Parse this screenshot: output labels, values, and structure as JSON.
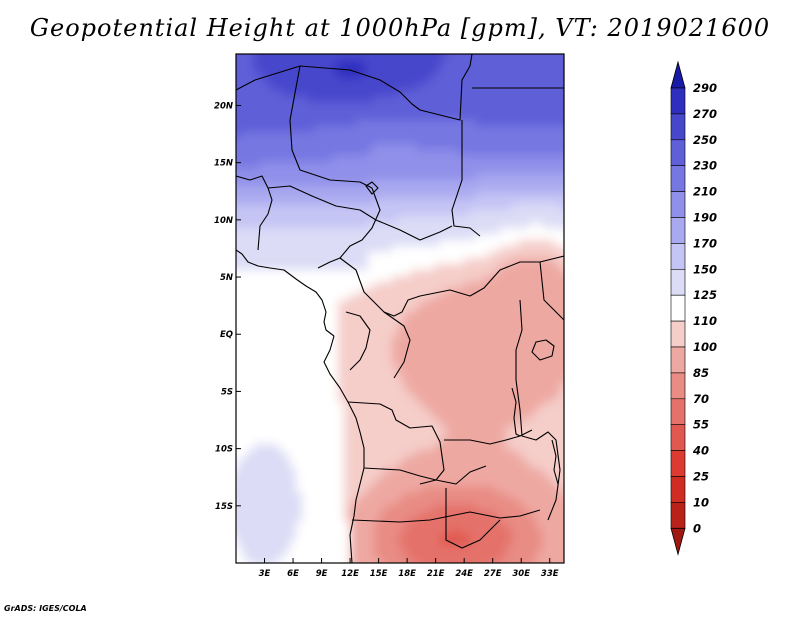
{
  "chart_data": {
    "type": "heatmap",
    "title": "Geopotential Height at 1000hPa [gpm], VT: 2019021600",
    "variable": "Geopotential Height",
    "level": "1000hPa",
    "units": "gpm",
    "valid_time": "2019021600",
    "x_axis": {
      "tick_labels": [
        "3E",
        "6E",
        "9E",
        "12E",
        "15E",
        "18E",
        "21E",
        "24E",
        "27E",
        "30E",
        "33E"
      ],
      "tick_values": [
        3,
        6,
        9,
        12,
        15,
        18,
        21,
        24,
        27,
        30,
        33
      ],
      "range": [
        0,
        34.5
      ]
    },
    "y_axis": {
      "tick_labels": [
        "20N",
        "15N",
        "10N",
        "5N",
        "EQ",
        "5S",
        "10S",
        "15S"
      ],
      "tick_values": [
        20,
        15,
        10,
        5,
        0,
        -5,
        -10,
        -15
      ],
      "range": [
        -20,
        24.5
      ]
    },
    "colorbar": {
      "levels": [
        0,
        10,
        25,
        40,
        55,
        70,
        85,
        100,
        110,
        125,
        150,
        170,
        190,
        210,
        230,
        250,
        270,
        290
      ],
      "colors": [
        "#a01812",
        "#b92219",
        "#cf2c22",
        "#dd3b32",
        "#e05850",
        "#e4726a",
        "#e88c84",
        "#eea8a2",
        "#f5cdc9",
        "#ffffff",
        "#dcdcf6",
        "#c4c4f5",
        "#a9a9f0",
        "#9090ea",
        "#7777e2",
        "#5f5fd8",
        "#4747cc",
        "#2f2fbf",
        "#1a1aa8"
      ],
      "extend": "both"
    },
    "pattern_summary": "Heights above 150 gpm (blue) over the Sahara north of 10N, maximum near 250 gpm around 22N 12E; near 110-125 gpm (white) over the Gulf of Guinea and South Atlantic; heights below 100 gpm (pink to red) over Central and Southern Africa, minimum near 40-55 gpm around 18S 22E."
  },
  "footer": {
    "credit": "GrADS: IGES/COLA"
  }
}
